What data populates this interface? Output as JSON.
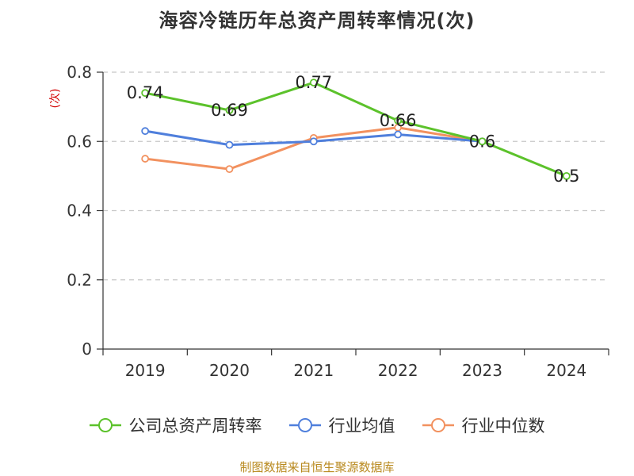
{
  "chart_data": {
    "type": "line",
    "title": "海容冷链历年总资产周转率情况(次)",
    "ylabel": "(次)",
    "xlabel": "",
    "categories": [
      "2019",
      "2020",
      "2021",
      "2022",
      "2023",
      "2024"
    ],
    "ylim": [
      0,
      0.8
    ],
    "yticks": [
      "0",
      "0.2",
      "0.4",
      "0.6",
      "0.8"
    ],
    "grid": true,
    "legend_position": "bottom",
    "series": [
      {
        "name": "公司总资产周转率",
        "color": "#5cc22b",
        "values": [
          0.74,
          0.69,
          0.77,
          0.66,
          0.6,
          0.5
        ],
        "labels": [
          "0.74",
          "0.69",
          "0.77",
          "0.66",
          "0.6",
          "0.5"
        ]
      },
      {
        "name": "行业均值",
        "color": "#4f7fdc",
        "values": [
          0.63,
          0.59,
          0.6,
          0.62,
          0.6,
          null
        ]
      },
      {
        "name": "行业中位数",
        "color": "#f2915f",
        "values": [
          0.55,
          0.52,
          0.61,
          0.64,
          0.6,
          null
        ]
      }
    ]
  },
  "source": "制图数据来自恒生聚源数据库"
}
